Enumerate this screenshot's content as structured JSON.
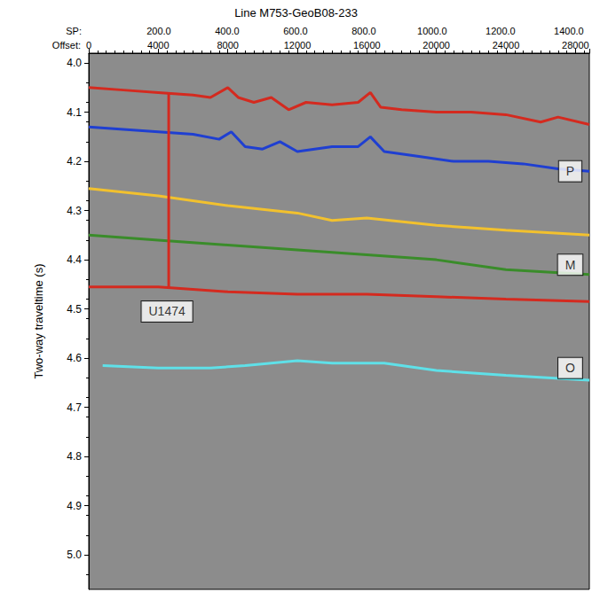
{
  "chart_data": {
    "type": "line",
    "title": "Line M753-GeoB08-233",
    "x_label": "Offset:",
    "x2_label": "SP:",
    "y_label": "Two-way traveltime (s)",
    "xlim": [
      0,
      28800
    ],
    "xticks": [
      0,
      4000,
      8000,
      12000,
      16000,
      20000,
      24000,
      28000
    ],
    "x2lim": [
      -5,
      1460
    ],
    "x2ticks": [
      {
        "value": 200,
        "label": "200.0"
      },
      {
        "value": 400,
        "label": "400.0"
      },
      {
        "value": 600,
        "label": "600.0"
      },
      {
        "value": 800,
        "label": "800.0"
      },
      {
        "value": 1000,
        "label": "1000.0"
      },
      {
        "value": 1200,
        "label": "1200.0"
      },
      {
        "value": 1400,
        "label": "1400.0"
      }
    ],
    "ylim": [
      3.98,
      5.07
    ],
    "yticks": [
      {
        "value": 4.0,
        "label": "4.0"
      },
      {
        "value": 4.1,
        "label": "4.1"
      },
      {
        "value": 4.2,
        "label": "4.2"
      },
      {
        "value": 4.3,
        "label": "4.3"
      },
      {
        "value": 4.4,
        "label": "4.4"
      },
      {
        "value": 4.5,
        "label": "4.5"
      },
      {
        "value": 4.6,
        "label": "4.6"
      },
      {
        "value": 4.7,
        "label": "4.7"
      },
      {
        "value": 4.8,
        "label": "4.8"
      },
      {
        "value": 4.9,
        "label": "4.9"
      },
      {
        "value": 5.0,
        "label": "5.0"
      }
    ],
    "grid": false,
    "series": [
      {
        "color": "#d42a1f",
        "x": [
          0,
          2000,
          4000,
          6000,
          7000,
          8000,
          8600,
          9500,
          10500,
          11500,
          12500,
          14000,
          15500,
          16200,
          16800,
          18000,
          20000,
          22000,
          24000,
          26000,
          27000,
          28800
        ],
        "values": [
          4.05,
          4.055,
          4.06,
          4.065,
          4.07,
          4.05,
          4.07,
          4.08,
          4.07,
          4.095,
          4.08,
          4.085,
          4.08,
          4.06,
          4.09,
          4.095,
          4.1,
          4.1,
          4.105,
          4.12,
          4.11,
          4.125
        ]
      },
      {
        "color": "#1f3fd1",
        "x": [
          0,
          2000,
          4000,
          6000,
          7500,
          8200,
          9000,
          10000,
          11000,
          12000,
          14000,
          15500,
          16200,
          17000,
          19000,
          21000,
          23000,
          25000,
          27000,
          28800
        ],
        "values": [
          4.13,
          4.135,
          4.14,
          4.145,
          4.155,
          4.14,
          4.17,
          4.175,
          4.16,
          4.18,
          4.17,
          4.17,
          4.15,
          4.18,
          4.19,
          4.2,
          4.2,
          4.205,
          4.215,
          4.22
        ]
      },
      {
        "color": "#f2c12e",
        "x": [
          0,
          4000,
          8000,
          12000,
          14000,
          16000,
          20000,
          24000,
          28800
        ],
        "values": [
          4.255,
          4.27,
          4.29,
          4.305,
          4.32,
          4.315,
          4.33,
          4.34,
          4.35
        ]
      },
      {
        "color": "#3a8c2a",
        "x": [
          0,
          4000,
          8000,
          12000,
          16000,
          20000,
          24000,
          28800
        ],
        "values": [
          4.35,
          4.36,
          4.37,
          4.38,
          4.39,
          4.4,
          4.42,
          4.43
        ]
      },
      {
        "color": "#d42a1f",
        "x": [
          0,
          4000,
          8000,
          12000,
          16000,
          20000,
          24000,
          28800
        ],
        "values": [
          4.455,
          4.455,
          4.465,
          4.47,
          4.47,
          4.475,
          4.48,
          4.485
        ]
      },
      {
        "color": "#5fe0e8",
        "x": [
          800,
          4000,
          7000,
          9000,
          12000,
          14000,
          17000,
          20000,
          24000,
          28800
        ],
        "values": [
          4.615,
          4.62,
          4.62,
          4.615,
          4.605,
          4.61,
          4.61,
          4.625,
          4.635,
          4.645
        ]
      },
      {
        "color": "#d42a1f",
        "x": [
          4600,
          4600
        ],
        "values": [
          4.06,
          4.455
        ]
      }
    ],
    "annotations": [
      {
        "text": "U1474",
        "x": 4500,
        "y": 4.505
      },
      {
        "text": "P",
        "x": 27700,
        "y": 4.22
      },
      {
        "text": "M",
        "x": 27700,
        "y": 4.41
      },
      {
        "text": "O",
        "x": 27700,
        "y": 4.62
      }
    ]
  }
}
